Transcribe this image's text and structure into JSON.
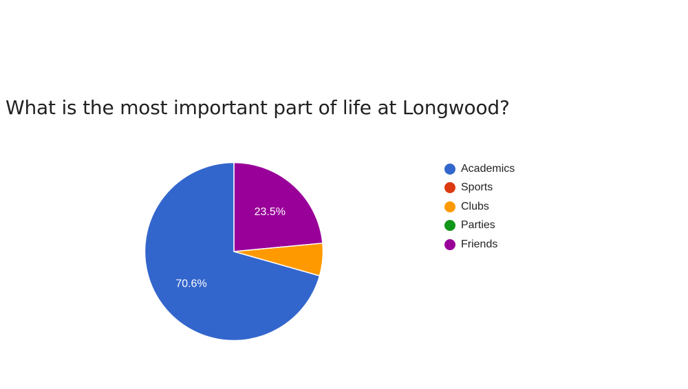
{
  "chart_data": {
    "type": "pie",
    "title": "What is the most important part of life at Longwood?",
    "legend_position": "right",
    "categories": [
      "Academics",
      "Sports",
      "Clubs",
      "Parties",
      "Friends"
    ],
    "values": [
      70.6,
      0,
      5.9,
      0,
      23.5
    ],
    "colors": [
      "#3366cc",
      "#dc3912",
      "#ff9900",
      "#109618",
      "#990099"
    ],
    "slice_labels": [
      "70.6%",
      "",
      "",
      "",
      "23.5%"
    ]
  }
}
